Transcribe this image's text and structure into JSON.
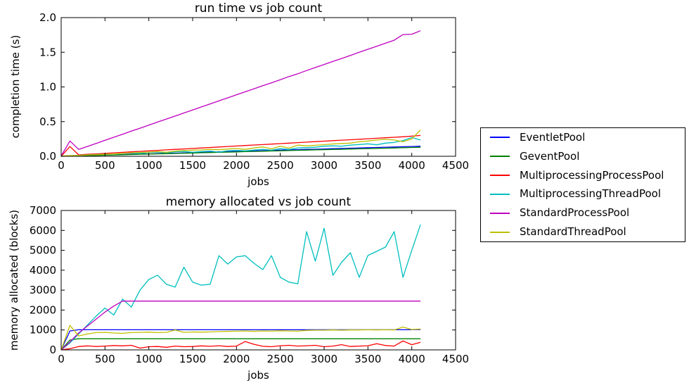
{
  "figure": {
    "background": "#ffffff"
  },
  "legend": {
    "entries": [
      {
        "label": "EventletPool",
        "color": "#0000ff"
      },
      {
        "label": "GeventPool",
        "color": "#008000"
      },
      {
        "label": "MultiprocessingProcessPool",
        "color": "#ff0000"
      },
      {
        "label": "MultiprocessingThreadPool",
        "color": "#00bfbf"
      },
      {
        "label": "StandardProcessPool",
        "color": "#bf00bf"
      },
      {
        "label": "StandardThreadPool",
        "color": "#bfbf00"
      }
    ]
  },
  "chart_data": [
    {
      "type": "line",
      "title": "run time vs job count",
      "xlabel": "jobs",
      "ylabel": "completion time (s)",
      "xlim": [
        0,
        4500
      ],
      "ylim": [
        0,
        2.0
      ],
      "grid": false,
      "legend_position": "outside-right",
      "xticks": [
        0,
        500,
        1000,
        1500,
        2000,
        2500,
        3000,
        3500,
        4000,
        4500
      ],
      "xtick_labels": [
        "0",
        "500",
        "1000",
        "1500",
        "2000",
        "2500",
        "3000",
        "3500",
        "4000",
        "4500"
      ],
      "yticks": [
        0.0,
        0.5,
        1.0,
        1.5,
        2.0
      ],
      "ytick_labels": [
        "0.0",
        "0.5",
        "1.0",
        "1.5",
        "2.0"
      ],
      "x": [
        0,
        100,
        200,
        300,
        400,
        500,
        600,
        700,
        800,
        900,
        1000,
        1100,
        1200,
        1300,
        1400,
        1500,
        1600,
        1700,
        1800,
        1900,
        2000,
        2100,
        2200,
        2300,
        2400,
        2500,
        2600,
        2700,
        2800,
        2900,
        3000,
        3100,
        3200,
        3300,
        3400,
        3500,
        3600,
        3700,
        3800,
        3900,
        4000,
        4100
      ],
      "series": [
        {
          "name": "EventletPool",
          "color": "#0000ff",
          "values": [
            0,
            0.004,
            0.007,
            0.011,
            0.014,
            0.018,
            0.021,
            0.025,
            0.028,
            0.032,
            0.035,
            0.039,
            0.042,
            0.046,
            0.049,
            0.053,
            0.057,
            0.06,
            0.064,
            0.067,
            0.071,
            0.074,
            0.078,
            0.081,
            0.085,
            0.088,
            0.092,
            0.095,
            0.099,
            0.102,
            0.106,
            0.11,
            0.113,
            0.117,
            0.12,
            0.124,
            0.127,
            0.131,
            0.134,
            0.138,
            0.141,
            0.145
          ]
        },
        {
          "name": "GeventPool",
          "color": "#008000",
          "values": [
            0,
            0.003,
            0.006,
            0.01,
            0.013,
            0.016,
            0.019,
            0.022,
            0.025,
            0.029,
            0.032,
            0.035,
            0.038,
            0.041,
            0.044,
            0.048,
            0.051,
            0.054,
            0.057,
            0.06,
            0.063,
            0.067,
            0.07,
            0.073,
            0.076,
            0.079,
            0.082,
            0.086,
            0.089,
            0.092,
            0.095,
            0.098,
            0.101,
            0.105,
            0.108,
            0.111,
            0.114,
            0.117,
            0.12,
            0.124,
            0.127,
            0.13
          ]
        },
        {
          "name": "MultiprocessingProcessPool",
          "color": "#ff0000",
          "values": [
            0,
            0.14,
            0.02,
            0.028,
            0.035,
            0.042,
            0.05,
            0.057,
            0.064,
            0.071,
            0.078,
            0.085,
            0.092,
            0.099,
            0.106,
            0.113,
            0.12,
            0.127,
            0.134,
            0.141,
            0.148,
            0.155,
            0.162,
            0.169,
            0.176,
            0.183,
            0.19,
            0.197,
            0.204,
            0.211,
            0.218,
            0.225,
            0.232,
            0.239,
            0.246,
            0.253,
            0.26,
            0.267,
            0.274,
            0.281,
            0.29,
            0.3
          ]
        },
        {
          "name": "MultiprocessingThreadPool",
          "color": "#00bfbf",
          "values": [
            0,
            0.008,
            0.014,
            0.02,
            0.025,
            0.03,
            0.028,
            0.04,
            0.045,
            0.042,
            0.055,
            0.06,
            0.05,
            0.065,
            0.07,
            0.058,
            0.068,
            0.075,
            0.06,
            0.08,
            0.085,
            0.078,
            0.09,
            0.1,
            0.088,
            0.11,
            0.098,
            0.12,
            0.125,
            0.13,
            0.145,
            0.15,
            0.145,
            0.16,
            0.17,
            0.18,
            0.165,
            0.19,
            0.2,
            0.225,
            0.27,
            0.235
          ]
        },
        {
          "name": "StandardProcessPool",
          "color": "#bf00bf",
          "values": [
            0.005,
            0.22,
            0.1,
            0.142,
            0.186,
            0.23,
            0.274,
            0.318,
            0.362,
            0.405,
            0.449,
            0.493,
            0.537,
            0.58,
            0.624,
            0.668,
            0.712,
            0.755,
            0.8,
            0.843,
            0.887,
            0.93,
            0.974,
            1.018,
            1.06,
            1.105,
            1.15,
            1.19,
            1.237,
            1.28,
            1.324,
            1.368,
            1.41,
            1.455,
            1.5,
            1.543,
            1.586,
            1.63,
            1.674,
            1.755,
            1.76,
            1.81
          ]
        },
        {
          "name": "StandardThreadPool",
          "color": "#bfbf00",
          "values": [
            0.005,
            0.01,
            0.012,
            0.018,
            0.022,
            0.028,
            0.032,
            0.042,
            0.05,
            0.055,
            0.06,
            0.068,
            0.058,
            0.075,
            0.082,
            0.088,
            0.092,
            0.1,
            0.094,
            0.105,
            0.112,
            0.1,
            0.12,
            0.135,
            0.108,
            0.145,
            0.118,
            0.16,
            0.15,
            0.158,
            0.168,
            0.178,
            0.185,
            0.19,
            0.21,
            0.22,
            0.235,
            0.245,
            0.235,
            0.21,
            0.25,
            0.38
          ]
        }
      ]
    },
    {
      "type": "line",
      "title": "memory allocated vs job count",
      "xlabel": "jobs",
      "ylabel": "memory allocated (blocks)",
      "xlim": [
        0,
        4500
      ],
      "ylim": [
        0,
        7000
      ],
      "grid": false,
      "legend_position": "outside-right",
      "xticks": [
        0,
        500,
        1000,
        1500,
        2000,
        2500,
        3000,
        3500,
        4000,
        4500
      ],
      "xtick_labels": [
        "0",
        "500",
        "1000",
        "1500",
        "2000",
        "2500",
        "3000",
        "3500",
        "4000",
        "4500"
      ],
      "yticks": [
        0,
        1000,
        2000,
        3000,
        4000,
        5000,
        6000,
        7000
      ],
      "ytick_labels": [
        "0",
        "1000",
        "2000",
        "3000",
        "4000",
        "5000",
        "6000",
        "7000"
      ],
      "x": [
        0,
        100,
        200,
        300,
        400,
        500,
        600,
        700,
        800,
        900,
        1000,
        1100,
        1200,
        1300,
        1400,
        1500,
        1600,
        1700,
        1800,
        1900,
        2000,
        2100,
        2200,
        2300,
        2400,
        2500,
        2600,
        2700,
        2800,
        2900,
        3000,
        3100,
        3200,
        3300,
        3400,
        3500,
        3600,
        3700,
        3800,
        3900,
        4000,
        4100
      ],
      "series": [
        {
          "name": "EventletPool",
          "color": "#0000ff",
          "values": [
            0,
            950,
            1010,
            1010,
            1010,
            1010,
            1010,
            1010,
            1010,
            1010,
            1010,
            1010,
            1010,
            1010,
            1010,
            1010,
            1010,
            1010,
            1010,
            1010,
            1010,
            1010,
            1010,
            1010,
            1010,
            1010,
            1010,
            1010,
            1010,
            1010,
            1010,
            1010,
            1010,
            1010,
            1010,
            1010,
            1010,
            1010,
            1010,
            1010,
            1010,
            1020
          ]
        },
        {
          "name": "GeventPool",
          "color": "#008000",
          "values": [
            0,
            500,
            560,
            560,
            560,
            560,
            560,
            560,
            560,
            560,
            560,
            560,
            560,
            560,
            560,
            560,
            560,
            560,
            560,
            560,
            560,
            560,
            560,
            560,
            560,
            560,
            560,
            560,
            560,
            560,
            560,
            560,
            560,
            560,
            560,
            560,
            560,
            560,
            560,
            560,
            560,
            560
          ]
        },
        {
          "name": "MultiprocessingProcessPool",
          "color": "#ff0000",
          "values": [
            0,
            60,
            170,
            200,
            170,
            190,
            220,
            200,
            230,
            90,
            160,
            170,
            130,
            190,
            160,
            170,
            200,
            180,
            210,
            170,
            190,
            420,
            280,
            180,
            160,
            210,
            230,
            190,
            210,
            230,
            160,
            190,
            260,
            170,
            190,
            210,
            310,
            220,
            190,
            450,
            260,
            380
          ]
        },
        {
          "name": "MultiprocessingThreadPool",
          "color": "#00bfbf",
          "values": [
            0,
            350,
            800,
            1250,
            1700,
            2100,
            1750,
            2550,
            2150,
            3000,
            3540,
            3750,
            3300,
            3150,
            4150,
            3400,
            3250,
            3300,
            4730,
            4310,
            4665,
            4730,
            4350,
            4030,
            4730,
            3640,
            3400,
            3320,
            5940,
            4450,
            6110,
            3745,
            4400,
            4880,
            3640,
            4740,
            4950,
            5160,
            5940,
            3640,
            5000,
            6290
          ]
        },
        {
          "name": "StandardProcessPool",
          "color": "#bf00bf",
          "values": [
            0,
            400,
            850,
            1200,
            1550,
            1900,
            2200,
            2450,
            2450,
            2450,
            2450,
            2450,
            2450,
            2450,
            2450,
            2450,
            2450,
            2450,
            2450,
            2450,
            2450,
            2450,
            2450,
            2450,
            2450,
            2450,
            2450,
            2450,
            2450,
            2450,
            2450,
            2450,
            2450,
            2450,
            2450,
            2450,
            2450,
            2450,
            2450,
            2450,
            2450,
            2450
          ]
        },
        {
          "name": "StandardThreadPool",
          "color": "#bfbf00",
          "values": [
            0,
            1230,
            700,
            800,
            870,
            880,
            850,
            830,
            870,
            880,
            890,
            870,
            880,
            1000,
            880,
            900,
            890,
            900,
            920,
            930,
            940,
            950,
            930,
            950,
            940,
            960,
            950,
            940,
            980,
            990,
            990,
            1000,
            990,
            1000,
            1000,
            1010,
            1000,
            1010,
            1000,
            1150,
            1020,
            1050
          ]
        }
      ]
    }
  ]
}
